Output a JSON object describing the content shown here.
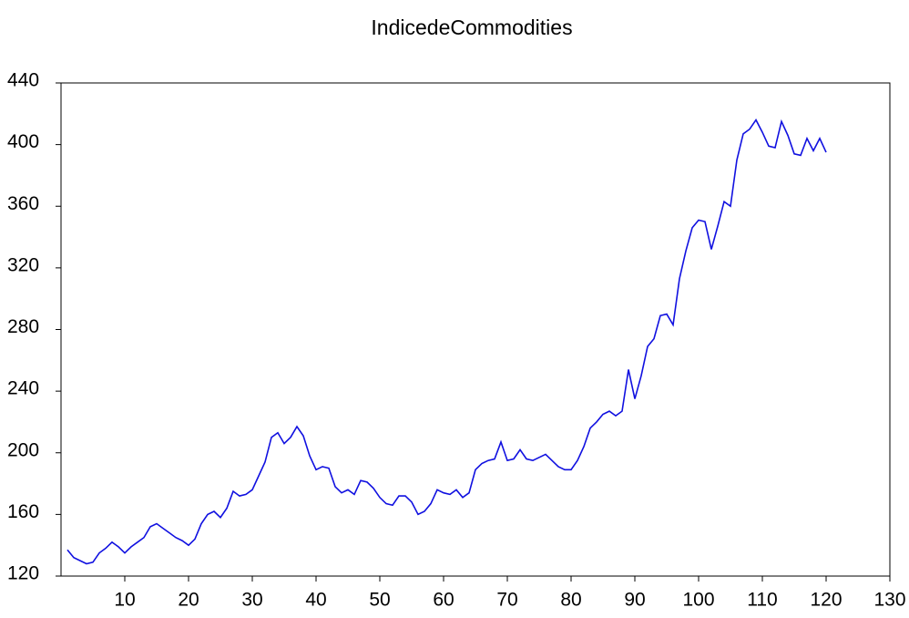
{
  "chart_data": {
    "type": "line",
    "title": "IndicedeCommodities",
    "x": [
      1,
      2,
      3,
      4,
      5,
      6,
      7,
      8,
      9,
      10,
      11,
      12,
      13,
      14,
      15,
      16,
      17,
      18,
      19,
      20,
      21,
      22,
      23,
      24,
      25,
      26,
      27,
      28,
      29,
      30,
      31,
      32,
      33,
      34,
      35,
      36,
      37,
      38,
      39,
      40,
      41,
      42,
      43,
      44,
      45,
      46,
      47,
      48,
      49,
      50,
      51,
      52,
      53,
      54,
      55,
      56,
      57,
      58,
      59,
      60,
      61,
      62,
      63,
      64,
      65,
      66,
      67,
      68,
      69,
      70,
      71,
      72,
      73,
      74,
      75,
      76,
      77,
      78,
      79,
      80,
      81,
      82,
      83,
      84,
      85,
      86,
      87,
      88,
      89,
      90,
      91,
      92,
      93,
      94,
      95,
      96,
      97,
      98,
      99,
      100,
      101,
      102,
      103,
      104,
      105,
      106,
      107,
      108,
      109,
      110,
      111,
      112,
      113,
      114,
      115,
      116,
      117,
      118,
      119,
      120
    ],
    "series": [
      {
        "name": "IndicedeCommodities",
        "color": "#1010e0",
        "values": [
          137,
          132,
          130,
          128,
          129,
          135,
          138,
          142,
          139,
          135,
          139,
          142,
          145,
          152,
          154,
          151,
          148,
          145,
          143,
          140,
          144,
          154,
          160,
          162,
          158,
          164,
          175,
          172,
          173,
          176,
          185,
          194,
          210,
          213,
          206,
          210,
          217,
          211,
          198,
          189,
          191,
          190,
          178,
          174,
          176,
          173,
          182,
          181,
          177,
          171,
          167,
          166,
          172,
          172,
          168,
          160,
          162,
          167,
          176,
          174,
          173,
          176,
          171,
          174,
          189,
          193,
          195,
          196,
          207,
          195,
          196,
          202,
          196,
          195,
          197,
          199,
          195,
          191,
          189,
          189,
          195,
          204,
          216,
          220,
          225,
          227,
          224,
          227,
          254,
          235,
          250,
          269,
          274,
          289,
          290,
          283,
          313,
          331,
          346,
          351,
          350,
          332,
          347,
          363,
          360,
          390,
          407,
          410,
          416,
          408,
          399,
          398,
          415,
          406,
          394,
          393,
          404,
          396,
          404,
          395
        ]
      }
    ],
    "xlim": [
      0,
      130
    ],
    "xticks": [
      10,
      20,
      30,
      40,
      50,
      60,
      70,
      80,
      90,
      100,
      110,
      120,
      130
    ],
    "ylim": [
      120,
      440
    ],
    "yticks": [
      120,
      160,
      200,
      240,
      280,
      320,
      360,
      400,
      440
    ]
  }
}
